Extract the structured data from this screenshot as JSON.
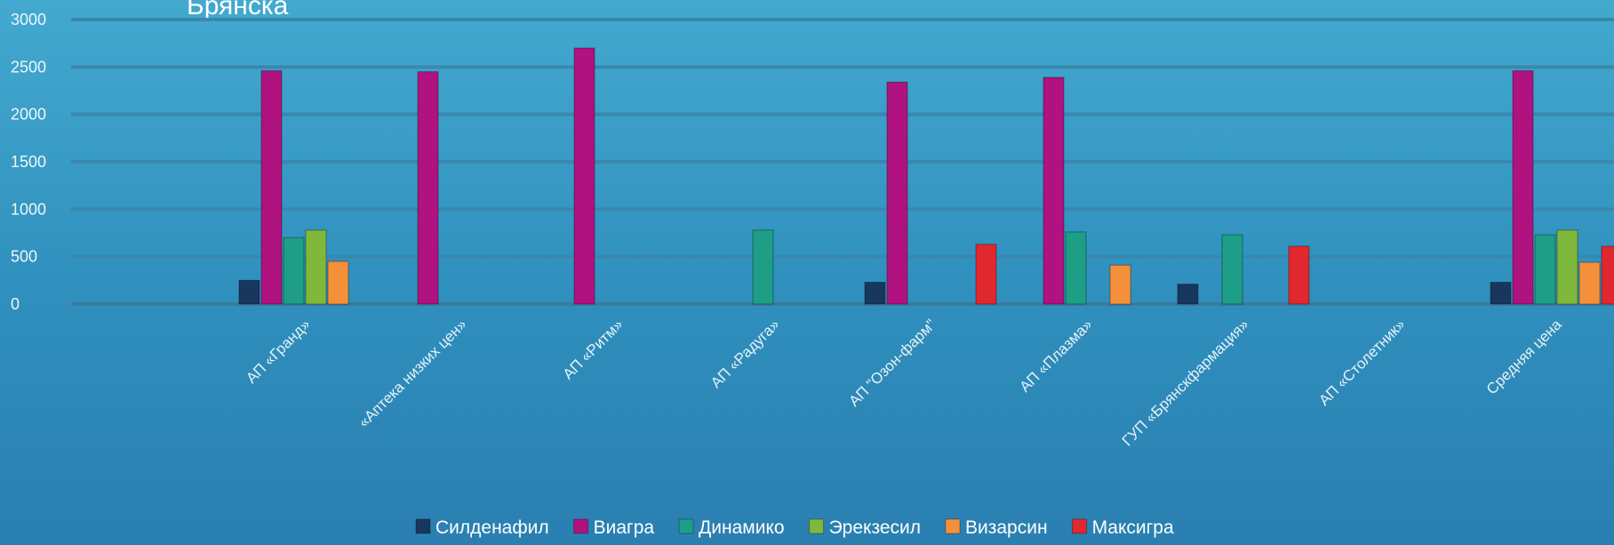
{
  "chart_data": {
    "type": "bar",
    "title": "Брянска",
    "ylim": [
      0,
      3000
    ],
    "yticks": [
      0,
      500,
      1000,
      1500,
      2000,
      2500,
      3000
    ],
    "grid": true,
    "legend_position": "bottom",
    "categories": [
      "АП «Гранд»",
      "«Аптека низких цен»",
      "АП «Ритм»",
      "АП «Радуга»",
      "АП \"Озон-фарм\"",
      "АП «Плазма»",
      "ГУП «Брянскфармация»",
      "АП «Столетник»",
      "Средняя цена"
    ],
    "series": [
      {
        "name": "Силденафил",
        "color": "#17375e",
        "values": [
          250,
          null,
          null,
          null,
          230,
          null,
          210,
          null,
          230
        ]
      },
      {
        "name": "Виагра",
        "color": "#b0127f",
        "values": [
          2460,
          2450,
          2700,
          null,
          2340,
          2390,
          null,
          null,
          2460
        ]
      },
      {
        "name": "Динамико",
        "color": "#1e9e86",
        "values": [
          700,
          null,
          null,
          780,
          null,
          760,
          730,
          null,
          730
        ]
      },
      {
        "name": "Эрекзесил",
        "color": "#7fb83a",
        "values": [
          780,
          null,
          null,
          null,
          null,
          null,
          null,
          null,
          780
        ]
      },
      {
        "name": "Визарсин",
        "color": "#f5903a",
        "values": [
          450,
          null,
          null,
          null,
          null,
          410,
          null,
          null,
          440
        ]
      },
      {
        "name": "Максигра",
        "color": "#e0282e",
        "values": [
          null,
          null,
          null,
          null,
          630,
          null,
          610,
          null,
          610
        ]
      }
    ]
  }
}
